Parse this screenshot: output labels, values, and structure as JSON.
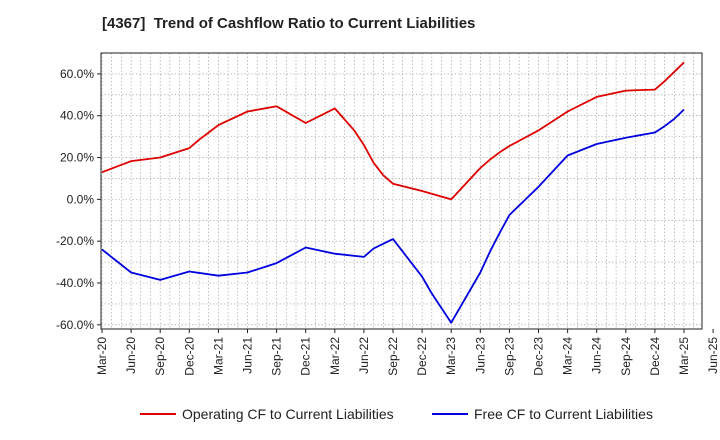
{
  "chart_data": {
    "type": "line",
    "title": "[4367]  Trend of Cashflow Ratio to Current Liabilities",
    "xlabel": "",
    "ylabel": "",
    "x_ticks": [
      "Mar-20",
      "Jun-20",
      "Sep-20",
      "Dec-20",
      "Mar-21",
      "Jun-21",
      "Sep-21",
      "Dec-21",
      "Mar-22",
      "Jun-22",
      "Sep-22",
      "Dec-22",
      "Mar-23",
      "Jun-23",
      "Sep-23",
      "Dec-23",
      "Mar-24",
      "Jun-24",
      "Sep-24",
      "Dec-24",
      "Mar-25",
      "Jun-25"
    ],
    "y_ticks": [
      "60.0%",
      "40.0%",
      "20.0%",
      "0.0%",
      "-20.0%",
      "-40.0%",
      "-60.0%"
    ],
    "y_tick_values": [
      60,
      40,
      20,
      0,
      -20,
      -40,
      -60
    ],
    "ylim": [
      -62,
      70
    ],
    "grid": true,
    "legend_position": "bottom",
    "series": [
      {
        "name": "Operating CF to Current Liabilities",
        "color": "#e00000",
        "points": [
          [
            "Mar-20",
            13.0
          ],
          [
            "Jun-20",
            18.3
          ],
          [
            "Sep-20",
            20.0
          ],
          [
            "Dec-20",
            24.5
          ],
          [
            "Jan-21",
            28.5
          ],
          [
            "Feb-21",
            32.0
          ],
          [
            "Mar-21",
            35.5
          ],
          [
            "Jun-21",
            42.0
          ],
          [
            "Sep-21",
            44.5
          ],
          [
            "Dec-21",
            36.5
          ],
          [
            "Mar-22",
            43.5
          ],
          [
            "May-22",
            33.0
          ],
          [
            "Jun-22",
            26.0
          ],
          [
            "Jul-22",
            17.5
          ],
          [
            "Aug-22",
            11.5
          ],
          [
            "Sep-22",
            7.5
          ],
          [
            "Dec-22",
            4.0
          ],
          [
            "Mar-23",
            0.0
          ],
          [
            "Jun-23",
            15.0
          ],
          [
            "Jul-23",
            19.0
          ],
          [
            "Aug-23",
            22.5
          ],
          [
            "Sep-23",
            25.5
          ],
          [
            "Dec-23",
            33.0
          ],
          [
            "Mar-24",
            42.0
          ],
          [
            "Jun-24",
            49.0
          ],
          [
            "Sep-24",
            52.0
          ],
          [
            "Dec-24",
            52.5
          ],
          [
            "Jan-25",
            56.5
          ],
          [
            "Feb-25",
            61.0
          ],
          [
            "Mar-25",
            65.5
          ]
        ]
      },
      {
        "name": "Free CF to Current Liabilities",
        "color": "#0000e0",
        "points": [
          [
            "Mar-20",
            -24.0
          ],
          [
            "Jun-20",
            -35.0
          ],
          [
            "Sep-20",
            -38.5
          ],
          [
            "Dec-20",
            -34.5
          ],
          [
            "Mar-21",
            -36.5
          ],
          [
            "Jun-21",
            -35.0
          ],
          [
            "Sep-21",
            -30.5
          ],
          [
            "Dec-21",
            -23.0
          ],
          [
            "Mar-22",
            -26.0
          ],
          [
            "Jun-22",
            -27.5
          ],
          [
            "Jul-22",
            -23.5
          ],
          [
            "Sep-22",
            -19.0
          ],
          [
            "Oct-22",
            -25.0
          ],
          [
            "Dec-22",
            -37.0
          ],
          [
            "Jan-23",
            -45.0
          ],
          [
            "Mar-23",
            -59.0
          ],
          [
            "Jun-23",
            -35.0
          ],
          [
            "Jul-23",
            -25.0
          ],
          [
            "Aug-23",
            -16.0
          ],
          [
            "Sep-23",
            -7.5
          ],
          [
            "Dec-23",
            6.0
          ],
          [
            "Mar-24",
            21.0
          ],
          [
            "Jun-24",
            26.5
          ],
          [
            "Sep-24",
            29.5
          ],
          [
            "Dec-24",
            32.0
          ],
          [
            "Jan-25",
            35.0
          ],
          [
            "Feb-25",
            38.5
          ],
          [
            "Mar-25",
            43.0
          ]
        ]
      }
    ]
  }
}
